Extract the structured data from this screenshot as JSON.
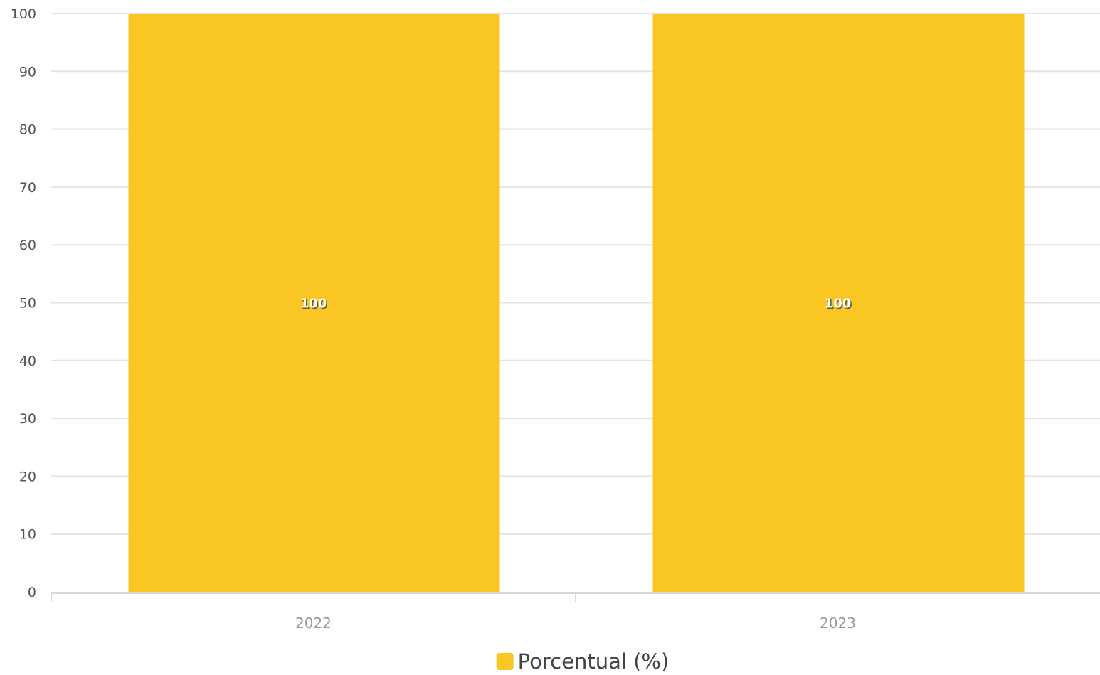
{
  "chart_data": {
    "type": "bar",
    "categories": [
      "2022",
      "2023"
    ],
    "series": [
      {
        "name": "Porcentual (%)",
        "values": [
          100,
          100
        ],
        "color": "#F9C623"
      }
    ],
    "data_labels": [
      "100",
      "100"
    ],
    "ylim": [
      0,
      100
    ],
    "yticks": [
      0,
      10,
      20,
      30,
      40,
      50,
      60,
      70,
      80,
      90,
      100
    ],
    "grid": true,
    "legend": "bottom-center",
    "colors": {
      "grid": "#e3e3e3",
      "axis": "#d8d8d8",
      "bar": "#F9C623"
    }
  }
}
